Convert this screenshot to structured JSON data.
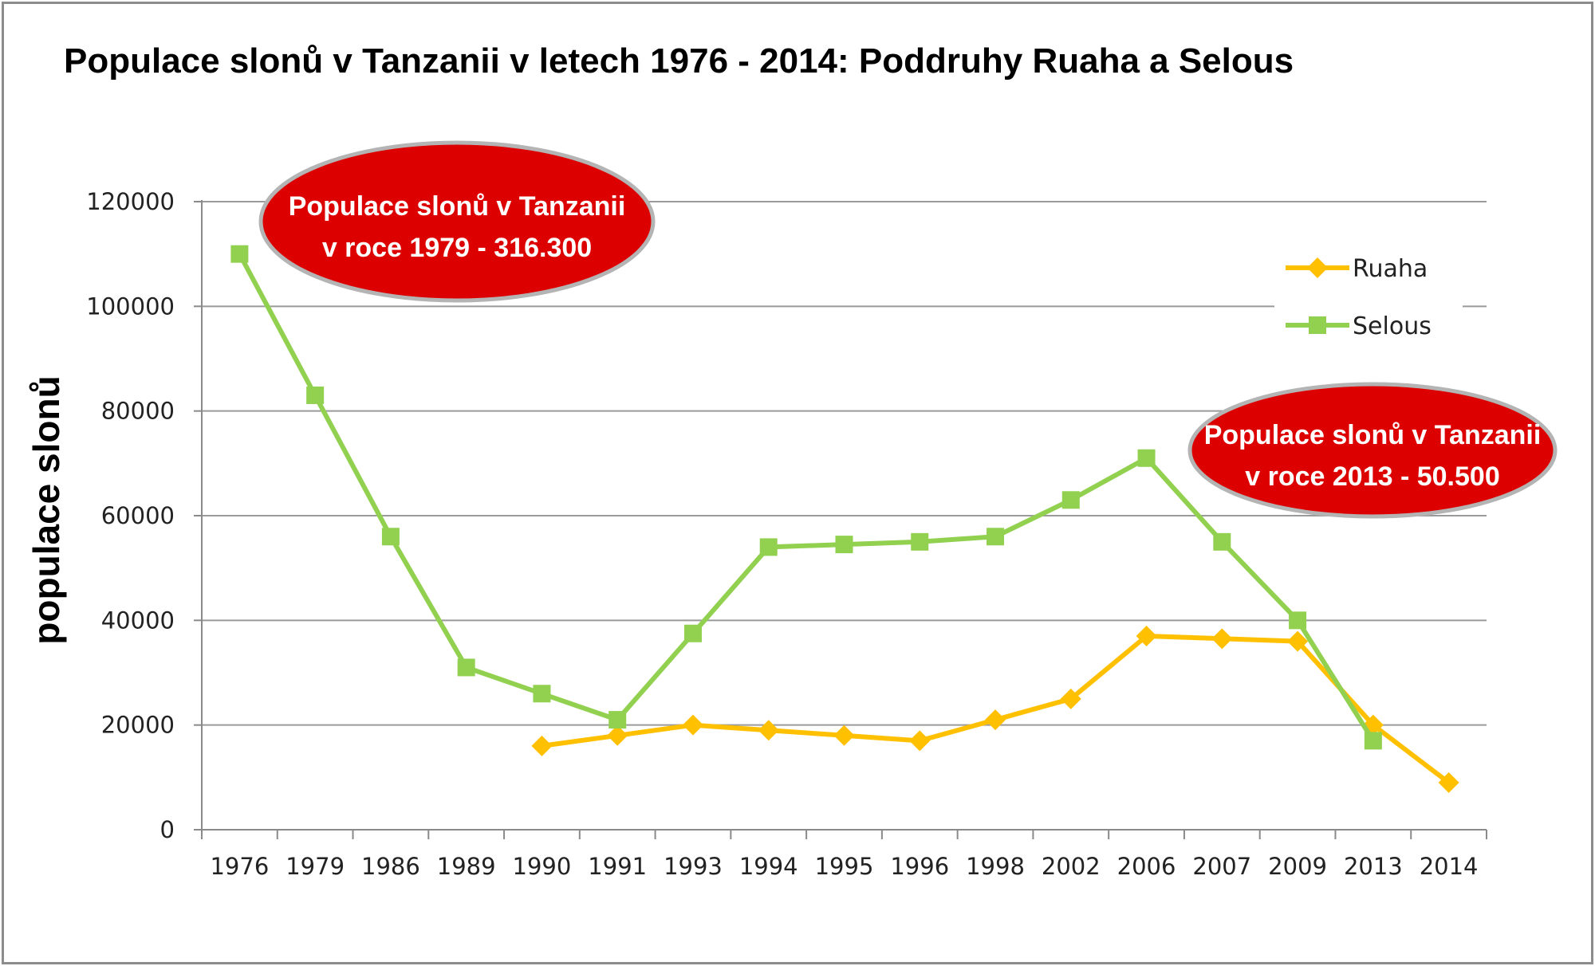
{
  "chart_data": {
    "type": "line",
    "title": "Populace slonů v Tanzanii v letech 1976 - 2014: Poddruhy Ruaha a Selous",
    "xlabel": "",
    "ylabel": "populace slonů",
    "categories": [
      "1976",
      "1979",
      "1986",
      "1989",
      "1990",
      "1991",
      "1993",
      "1994",
      "1995",
      "1996",
      "1998",
      "2002",
      "2006",
      "2007",
      "2009",
      "2013",
      "2014"
    ],
    "ylim": [
      0,
      120000
    ],
    "yticks": [
      "0",
      "20000",
      "40000",
      "60000",
      "80000",
      "100000",
      "120000"
    ],
    "grid": true,
    "legend_position": "right",
    "series": [
      {
        "name": "Ruaha",
        "color": "#FFC000",
        "marker": "diamond",
        "values": [
          null,
          null,
          null,
          null,
          16000,
          18000,
          20000,
          19000,
          18000,
          17000,
          21000,
          25000,
          37000,
          36500,
          36000,
          20000,
          9000
        ]
      },
      {
        "name": "Selous",
        "color": "#92D050",
        "marker": "square",
        "values": [
          110000,
          83000,
          56000,
          31000,
          26000,
          21000,
          37500,
          54000,
          54500,
          55000,
          56000,
          63000,
          71000,
          55000,
          40000,
          17000,
          null
        ]
      }
    ],
    "annotations": [
      {
        "line1": "Populace slonů v Tanzanii",
        "line2": "v roce 1979 - 316.300",
        "color": "#DD0000"
      },
      {
        "line1": "Populace slonů v Tanzanii",
        "line2": "v roce 2013 - 50.500",
        "color": "#DD0000"
      }
    ]
  }
}
